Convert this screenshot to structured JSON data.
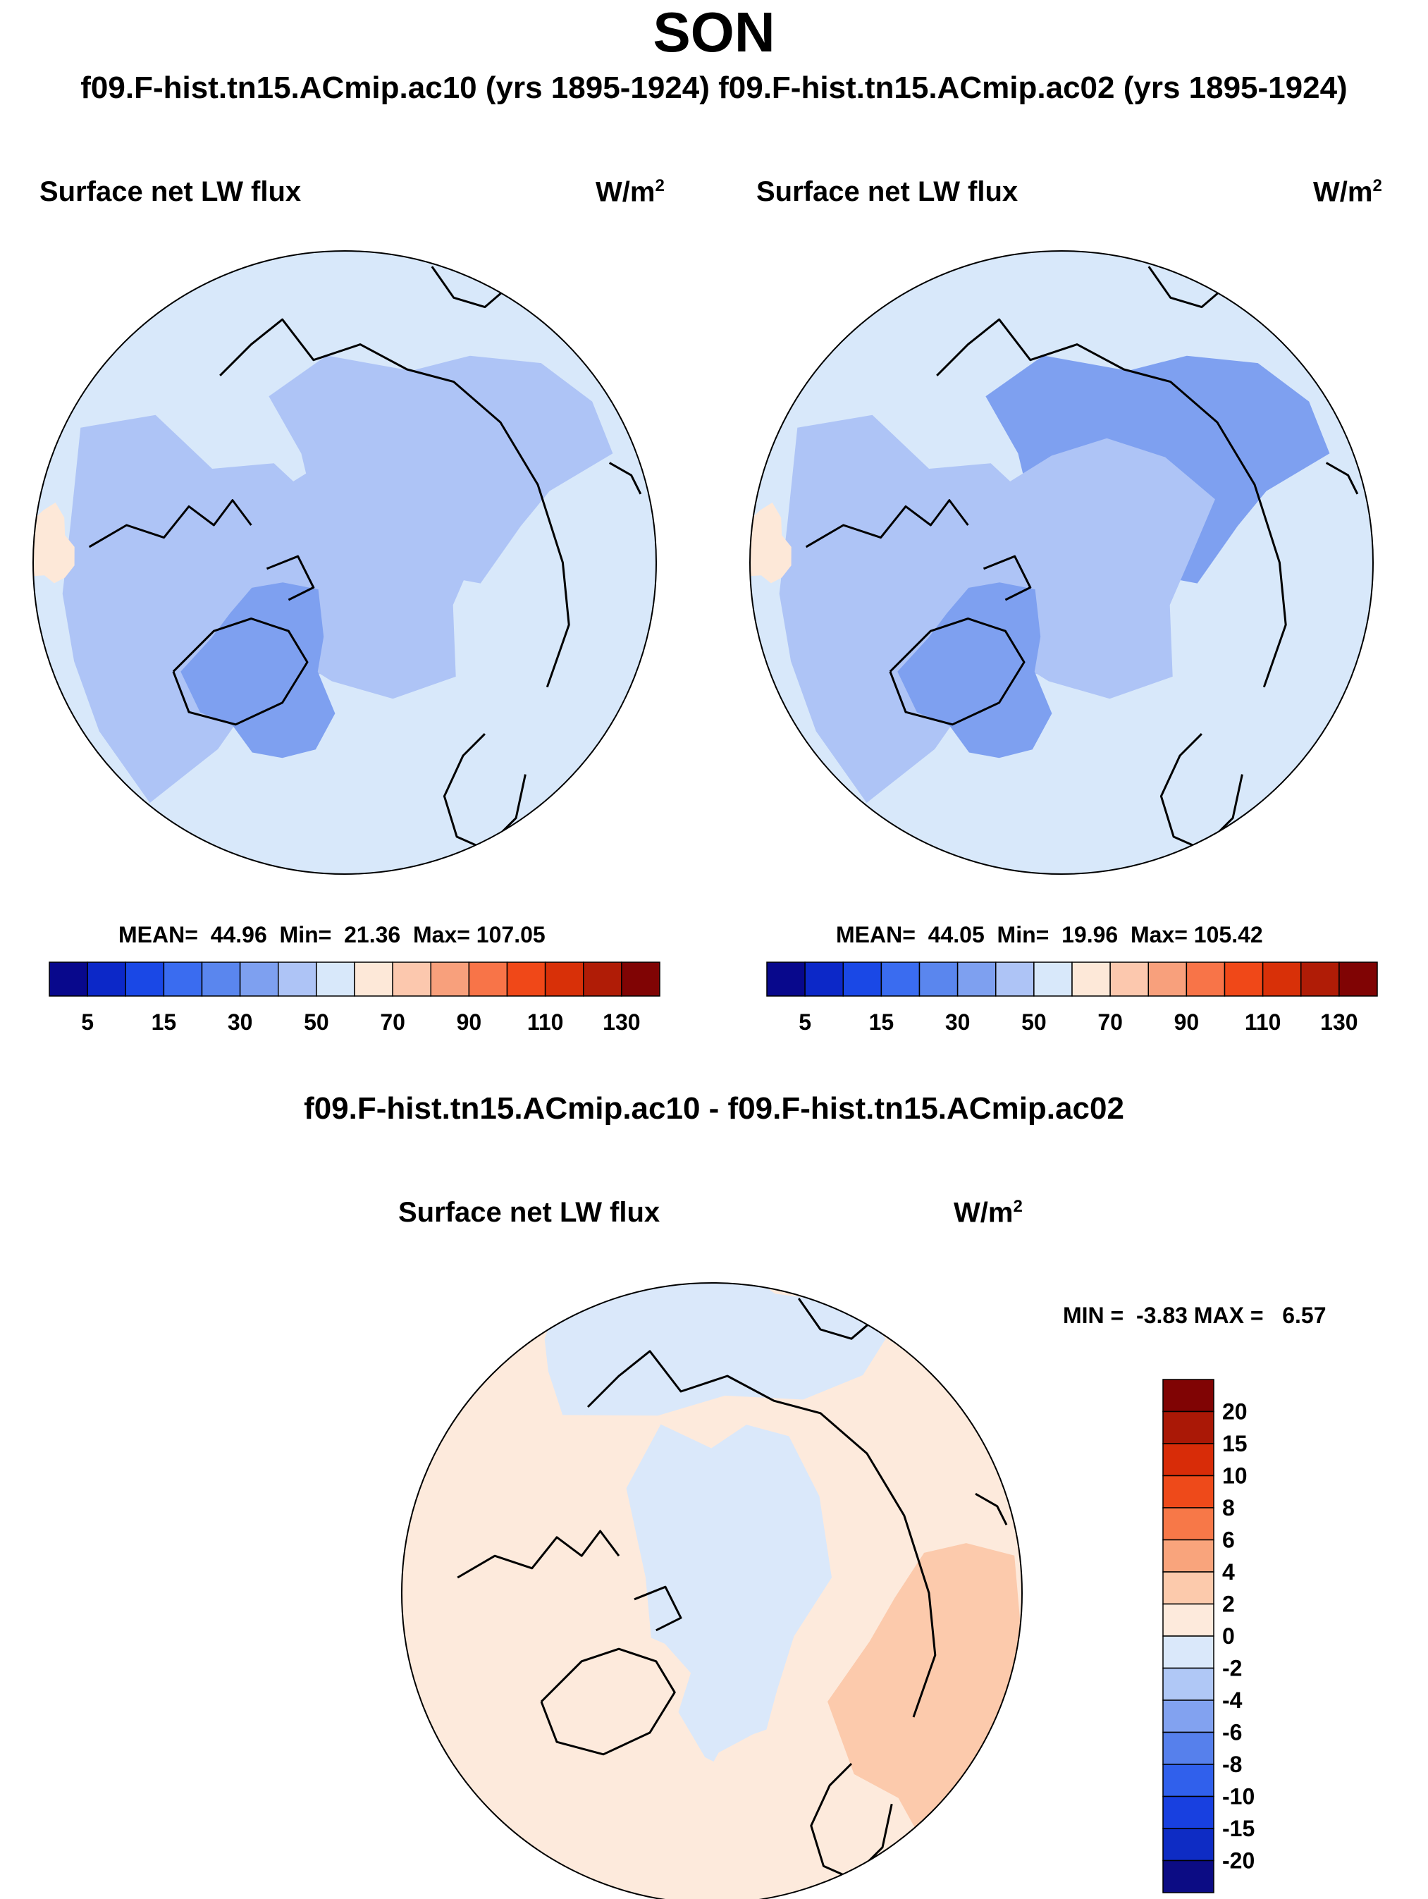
{
  "figure": {
    "title": "SON",
    "subtitle": "f09.F-hist.tn15.ACmip.ac10 (yrs 1895-1924) f09.F-hist.tn15.ACmip.ac02 (yrs 1895-1924)",
    "diff_title": "f09.F-hist.tn15.ACmip.ac10 - f09.F-hist.tn15.ACmip.ac02"
  },
  "colors": {
    "abs_levels": [
      "#08088c",
      "#0c28c8",
      "#1a48e6",
      "#3a6cf0",
      "#5a86ee",
      "#7ea0f0",
      "#aec4f6",
      "#d8e8fa",
      "#fde8d8",
      "#fcc8ae",
      "#f8a07c",
      "#f87448",
      "#f04818",
      "#d83008",
      "#b01c06",
      "#800404"
    ],
    "diff_levels": [
      "#0c0c84",
      "#0e2cc4",
      "#1840e0",
      "#3060ec",
      "#5680ec",
      "#82a2f0",
      "#b0c8f6",
      "#dae8fa",
      "#fdeadc",
      "#fccaac",
      "#f9a47c",
      "#f77848",
      "#ee4a1a",
      "#d82c08",
      "#aa1806",
      "#800404"
    ],
    "coast": "#000000"
  },
  "chart_data": [
    {
      "type": "heatmap",
      "projection": "north-polar-stereographic",
      "title": "Surface net LW flux",
      "units": "W/m",
      "units_exp": "2",
      "stats": {
        "mean_label": "MEAN=",
        "mean": "44.96",
        "min_label": "Min=",
        "min": "21.36",
        "max_label": "Max=",
        "max": "107.05"
      },
      "colorbar": {
        "orientation": "horizontal",
        "ticks": [
          "5",
          "15",
          "30",
          "50",
          "70",
          "90",
          "110",
          "130"
        ]
      },
      "levels": [
        5,
        10,
        15,
        20,
        30,
        40,
        50,
        60,
        70,
        80,
        90,
        100,
        110,
        120,
        130
      ],
      "regions": {
        "central_arctic": 45,
        "north_atlantic": 55,
        "siberia": 40,
        "north_america": 42,
        "greenland": 38,
        "nw_pacific_coast": 65
      }
    },
    {
      "type": "heatmap",
      "projection": "north-polar-stereographic",
      "title": "Surface net LW flux",
      "units": "W/m",
      "units_exp": "2",
      "stats": {
        "mean_label": "MEAN=",
        "mean": "44.05",
        "min_label": "Min=",
        "min": "19.96",
        "max_label": "Max=",
        "max": "105.42"
      },
      "colorbar": {
        "orientation": "horizontal",
        "ticks": [
          "5",
          "15",
          "30",
          "50",
          "70",
          "90",
          "110",
          "130"
        ]
      },
      "levels": [
        5,
        10,
        15,
        20,
        30,
        40,
        50,
        60,
        70,
        80,
        90,
        100,
        110,
        120,
        130
      ],
      "regions": {
        "central_arctic": 44,
        "north_atlantic": 54,
        "siberia": 39,
        "north_america": 41,
        "greenland": 37,
        "nw_pacific_coast": 64
      }
    },
    {
      "type": "heatmap",
      "projection": "north-polar-stereographic",
      "title": "Surface net LW flux",
      "units": "W/m",
      "units_exp": "2",
      "stats": {
        "label": "MIN =  -3.83 MAX =   6.57",
        "min": -3.83,
        "max": 6.57
      },
      "colorbar": {
        "orientation": "vertical",
        "ticks": [
          "20",
          "15",
          "10",
          "8",
          "6",
          "4",
          "2",
          "0",
          "-2",
          "-4",
          "-6",
          "-8",
          "-10",
          "-15",
          "-20"
        ]
      },
      "levels": [
        -20,
        -15,
        -10,
        -8,
        -6,
        -4,
        -2,
        0,
        2,
        4,
        6,
        8,
        10,
        15,
        20
      ],
      "regions": {
        "central_arctic": -1,
        "north_atlantic": 1,
        "siberia": 3,
        "north_america": 1,
        "greenland": 1,
        "north_pacific": -1
      }
    }
  ]
}
